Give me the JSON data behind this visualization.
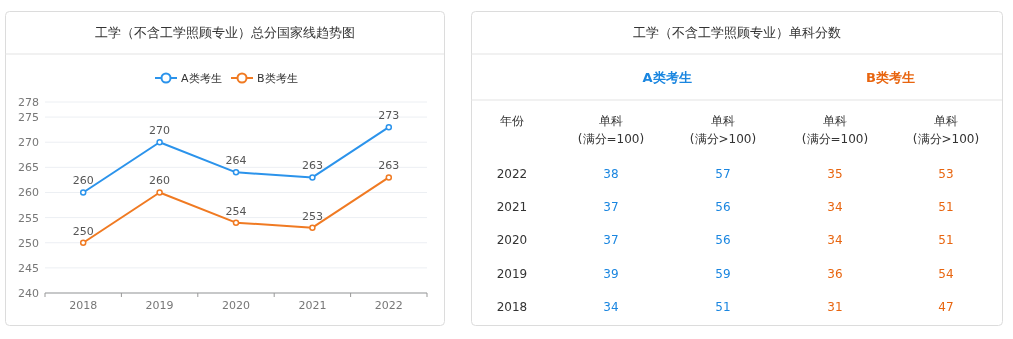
{
  "chart_data": [
    {
      "type": "line",
      "title": "工学（不含工学照顾专业）总分国家线趋势图",
      "categories": [
        "2018",
        "2019",
        "2020",
        "2021",
        "2022"
      ],
      "series": [
        {
          "name": "A类考生",
          "color": "#2b93eb",
          "values": [
            260,
            270,
            264,
            263,
            273
          ]
        },
        {
          "name": "B类考生",
          "color": "#f07a22",
          "values": [
            250,
            260,
            254,
            253,
            263
          ]
        }
      ],
      "ylim": [
        240,
        278
      ],
      "yticks": [
        240,
        245,
        250,
        255,
        260,
        265,
        270,
        275,
        278
      ],
      "grid": "y",
      "legend": "top",
      "marker": "circle",
      "line_style": "solid",
      "data_labels": true
    },
    {
      "type": "heatmap",
      "title": "工学（不含工学照顾专业）单科分数",
      "ylabel": "年份",
      "annotations": [
        "A类考生",
        "B类考生"
      ],
      "categories": [
        "单科\n(满分=100)",
        "单科\n(满分>100)",
        "单科\n(满分=100)",
        "单科\n(满分>100)"
      ],
      "colors": [
        "#1a86e0",
        "#1a86e0",
        "#e8650f",
        "#e8650f"
      ],
      "y_categories": [
        "2022",
        "2021",
        "2020",
        "2019",
        "2018"
      ],
      "cells": [
        [
          38,
          57,
          35,
          53
        ],
        [
          37,
          56,
          34,
          51
        ],
        [
          37,
          56,
          34,
          51
        ],
        [
          39,
          59,
          36,
          54
        ],
        [
          34,
          51,
          31,
          47
        ]
      ],
      "data_labels": true
    }
  ]
}
